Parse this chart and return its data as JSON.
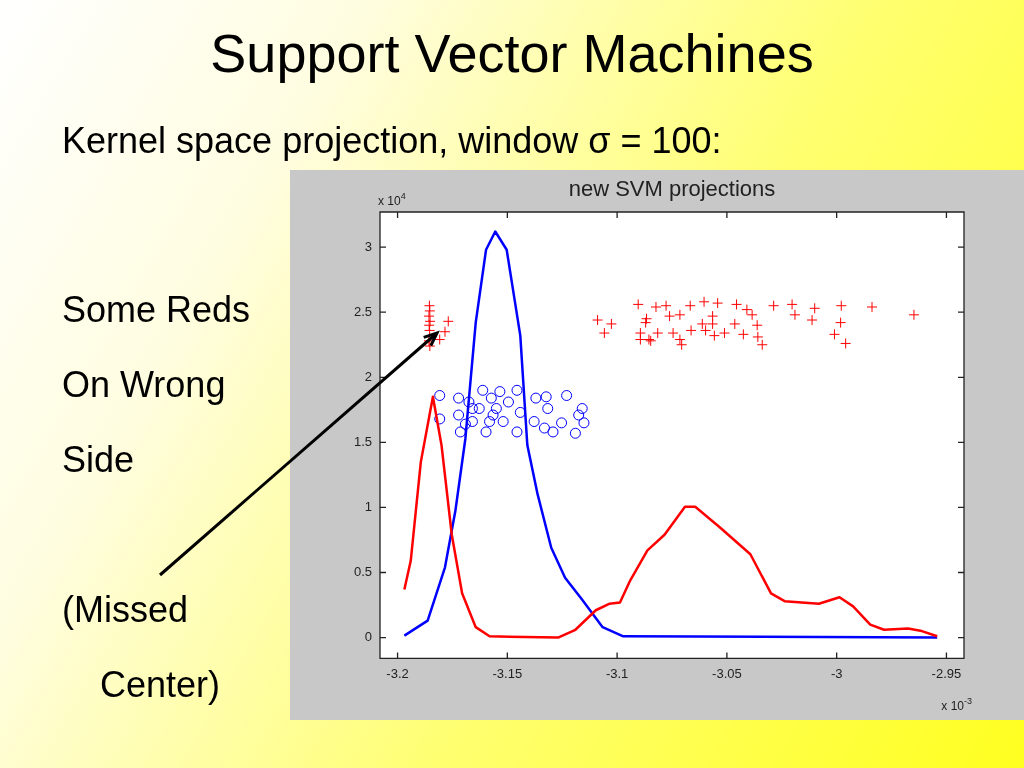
{
  "chart_data": {
    "type": "line",
    "title": "Support Vector Machines",
    "subtitle": "Kernel space projection, window σ = 100:",
    "xlim": [
      -3.208,
      -2.942
    ],
    "ylim": [
      -0.16,
      3.27
    ],
    "xticks": [
      -3.2,
      -3.15,
      -3.1,
      -3.05,
      -3,
      -2.95
    ],
    "yticks": [
      0,
      0.5,
      1,
      1.5,
      2,
      2.5,
      3
    ],
    "grid": false,
    "legend": false,
    "annotations": [
      "new SVM projections",
      "x 10$^{4}$",
      "x 10$^{-3}$",
      "Some Reds\nOn Wrong\nSide\n(Missed\nCenter)"
    ],
    "series": [
      {
        "color": "#ff0000",
        "marker": "none",
        "x": [
          -3.1969,
          -3.194,
          -3.1894,
          -3.1839,
          -3.18,
          -3.1753,
          -3.1706,
          -3.1644,
          -3.1581,
          -3.1269,
          -3.119,
          -3.1097,
          -3.1034,
          -3.0987,
          -3.094,
          -3.0862,
          -3.0784,
          -3.0691,
          -3.0644,
          -3.0534,
          -3.0393,
          -3.0299,
          -3.0237,
          -3.0081,
          -2.9987,
          -2.9925,
          -2.9847,
          -2.9784,
          -2.9675,
          -2.9612,
          -2.9542
        ],
        "values": [
          0.37,
          0.59,
          1.35,
          1.85,
          1.48,
          0.79,
          0.34,
          0.08,
          0.01,
          0,
          0.06,
          0.21,
          0.26,
          0.27,
          0.44,
          0.67,
          0.79,
          1.005,
          1.005,
          0.85,
          0.64,
          0.34,
          0.28,
          0.26,
          0.31,
          0.24,
          0.1,
          0.06,
          0.07,
          0.05,
          0.01
        ]
      },
      {
        "color": "#0000ff",
        "marker": "none",
        "x": [
          -3.1969,
          -3.1863,
          -3.1784,
          -3.1737,
          -3.1691,
          -3.1644,
          -3.1597,
          -3.1555,
          -3.1503,
          -3.1441,
          -3.1409,
          -3.1362,
          -3.13,
          -3.1237,
          -3.1159,
          -3.1066,
          -3.0972,
          -2.9542
        ],
        "values": [
          0.015,
          0.13,
          0.54,
          0.97,
          1.53,
          2.42,
          2.98,
          3.12,
          2.98,
          2.32,
          1.48,
          1.1,
          0.69,
          0.46,
          0.29,
          0.08,
          0.01,
          0
        ]
      },
      {
        "type": "scatter",
        "color": "#ff0000",
        "marker": "cross",
        "x": [
          -3.1855,
          -3.1853,
          -3.1857,
          -3.1852,
          -3.1856,
          -3.1854,
          -3.1857,
          -3.1853,
          -3.1769,
          -3.1784,
          -3.1808,
          -3.1089,
          -3.1026,
          -3.1058,
          -3.0904,
          -3.0823,
          -3.0866,
          -3.0894,
          -3.0855,
          -3.0894,
          -3.0777,
          -3.0761,
          -3.0714,
          -3.0667,
          -3.0604,
          -3.0542,
          -3.0456,
          -3.0409,
          -3.0385,
          -3.0287,
          -3.0203,
          -3.019,
          -3.01,
          -3.0112,
          -2.9979,
          -2.9982,
          -3.001,
          -2.9959,
          -2.9839,
          -2.9648,
          -3.087,
          -3.0847,
          -3.0815,
          -3.0745,
          -3.0714,
          -3.0706,
          -3.0663,
          -3.0612,
          -3.0597,
          -3.0565,
          -3.0557,
          -3.0511,
          -3.0464,
          -3.0425,
          -3.0362,
          -3.0359,
          -3.0339,
          -3.0565
        ],
        "values": [
          2.55,
          2.51,
          2.47,
          2.43,
          2.4,
          2.36,
          2.28,
          2.24,
          2.43,
          2.35,
          2.29,
          2.44,
          2.41,
          2.34,
          2.56,
          2.54,
          2.45,
          2.34,
          2.29,
          2.29,
          2.55,
          2.47,
          2.48,
          2.55,
          2.58,
          2.57,
          2.56,
          2.52,
          2.48,
          2.55,
          2.56,
          2.48,
          2.53,
          2.44,
          2.55,
          2.42,
          2.33,
          2.26,
          2.54,
          2.48,
          2.42,
          2.28,
          2.34,
          2.34,
          2.29,
          2.25,
          2.36,
          2.41,
          2.36,
          2.41,
          2.32,
          2.34,
          2.41,
          2.33,
          2.4,
          2.31,
          2.25,
          2.47
        ]
      },
      {
        "type": "scatter",
        "color": "#0000ff",
        "marker": "circle",
        "x": [
          -3.1808,
          -3.1808,
          -3.1722,
          -3.1722,
          -3.1714,
          -3.1675,
          -3.1659,
          -3.1612,
          -3.1628,
          -3.1597,
          -3.1573,
          -3.1565,
          -3.1534,
          -3.1519,
          -3.1495,
          -3.1456,
          -3.1441,
          -3.1456,
          -3.137,
          -3.1323,
          -3.1316,
          -3.1378,
          -3.1331,
          -3.1292,
          -3.1253,
          -3.123,
          -3.1159,
          -3.1175,
          -3.1151,
          -3.119,
          -3.1691,
          -3.1581,
          -3.155,
          -3.1659
        ],
        "values": [
          1.86,
          1.68,
          1.84,
          1.71,
          1.58,
          1.81,
          1.66,
          1.9,
          1.76,
          1.58,
          1.84,
          1.71,
          1.89,
          1.66,
          1.81,
          1.9,
          1.73,
          1.58,
          1.84,
          1.85,
          1.76,
          1.66,
          1.61,
          1.58,
          1.65,
          1.86,
          1.76,
          1.71,
          1.65,
          1.57,
          1.64,
          1.66,
          1.76,
          1.76
        ]
      }
    ]
  }
}
